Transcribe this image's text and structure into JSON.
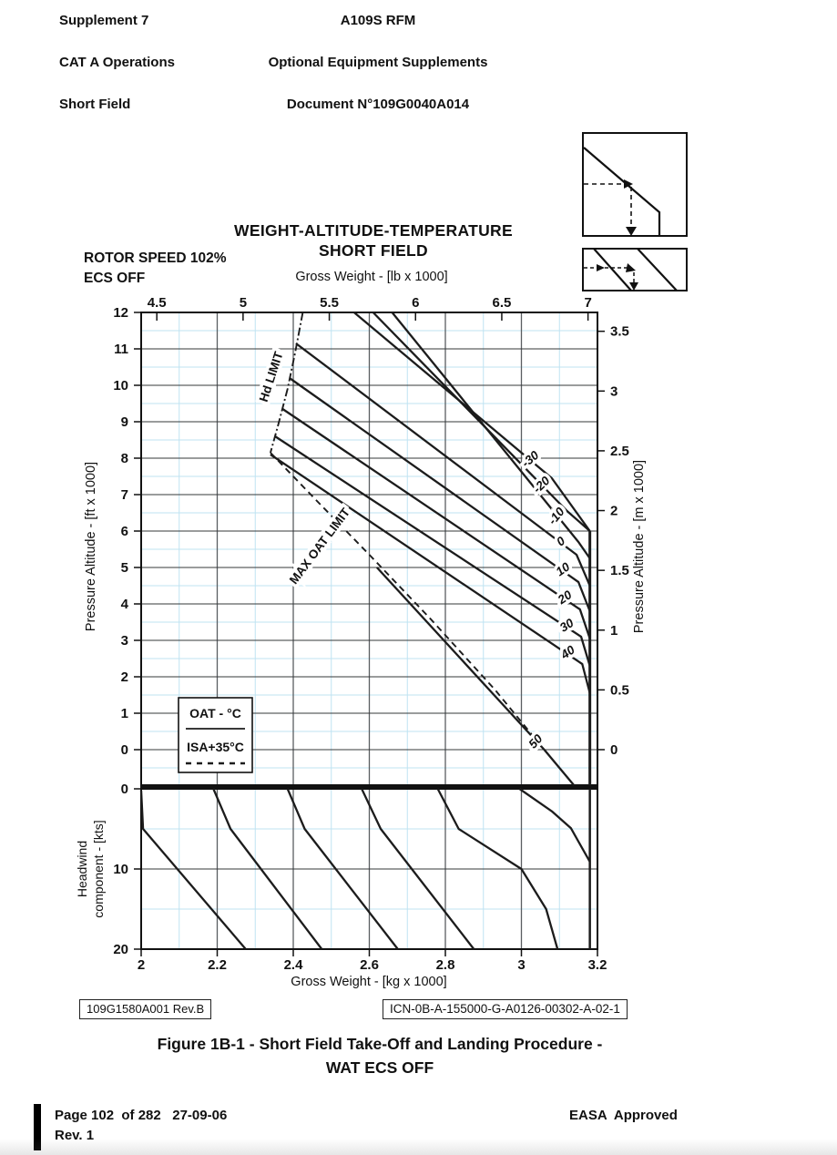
{
  "header": {
    "left_lines": [
      "Supplement 7",
      "CAT A Operations",
      "Short Field"
    ],
    "center_lines": [
      "A109S RFM",
      "Optional Equipment Supplements",
      "Document N°109G0040A014"
    ]
  },
  "ref_boxes": {
    "left": "109G1580A001 Rev.B",
    "right": "ICN-0B-A-155000-G-A0126-00302-A-02-1"
  },
  "caption": {
    "line1": "Figure 1B-1 - Short Field Take-Off and Landing Procedure -",
    "line2": "WAT ECS OFF"
  },
  "footer": {
    "page_line": "Page 102  of 282   27-09-06",
    "rev_line": "Rev. 1",
    "approved": "EASA  Approved"
  },
  "chart_data": {
    "type": "line",
    "title": "WEIGHT-ALTITUDE-TEMPERATURE",
    "subtitle": "SHORT FIELD",
    "condition_lines": [
      "ROTOR SPEED 102%",
      "ECS OFF"
    ],
    "axes": {
      "top": {
        "label": "Gross Weight - [lb x 1000]",
        "ticks": [
          4.5,
          5,
          5.5,
          6,
          6.5,
          7
        ],
        "kg_per_klb": 0.45359237
      },
      "bottom": {
        "label": "Gross Weight - [kg x 1000]",
        "ticks": [
          2,
          2.2,
          2.4,
          2.6,
          2.8,
          3,
          3.2
        ],
        "range": [
          2.0,
          3.2
        ],
        "minor_step": 0.1
      },
      "left_upper": {
        "label": "Pressure Altitude - [ft x 1000]",
        "ticks": [
          0,
          1,
          2,
          3,
          4,
          5,
          6,
          7,
          8,
          9,
          10,
          11,
          12
        ],
        "range": [
          -0.975,
          12
        ],
        "minor_step": 0.5
      },
      "right_upper": {
        "label": "Pressure Altitude - [m x 1000]",
        "ticks": [
          0,
          0.5,
          1,
          1.5,
          2,
          2.5,
          3,
          3.5
        ],
        "ft_per_m": 3.28084
      },
      "left_lower": {
        "label_line1": "Headwind",
        "label_line2": "component - [kts]",
        "ticks": [
          0,
          10,
          20
        ],
        "range": [
          0,
          20
        ],
        "light_lines": [
          5,
          15
        ],
        "dark_lines": [
          10
        ]
      }
    },
    "weight_limit_kg": 3.18,
    "limit_vertical_top_ft": 6.0,
    "hd_limit": {
      "label": "Hd LIMIT",
      "points": [
        [
          2.425,
          12
        ],
        [
          2.405,
          10.9
        ],
        [
          2.385,
          9.9
        ],
        [
          2.36,
          8.9
        ],
        [
          2.34,
          8.15
        ]
      ],
      "label_pos": [
        2.352,
        10.2
      ],
      "label_rot": -72
    },
    "max_oat_limit": {
      "label": "MAX OAT LIMIT",
      "points": [
        [
          2.34,
          8.15
        ],
        [
          2.46,
          6.85
        ],
        [
          2.6,
          5.35
        ],
        [
          2.76,
          3.6
        ],
        [
          2.93,
          1.65
        ],
        [
          3.06,
          0.0
        ],
        [
          3.138,
          -0.975
        ]
      ],
      "label_pos": [
        2.478,
        5.52
      ],
      "label_rot": -53
    },
    "oat_lines": [
      {
        "label": "-30",
        "points": [
          [
            2.56,
            12
          ],
          [
            3.08,
            7.45
          ],
          [
            3.18,
            6.0
          ]
        ],
        "label_pos": [
          3.03,
          7.89
        ],
        "label_rot": -40
      },
      {
        "label": "-20",
        "points": [
          [
            2.61,
            12
          ],
          [
            3.12,
            6.55
          ],
          [
            3.18,
            6.0
          ]
        ],
        "label_pos": [
          3.06,
          7.19
        ],
        "label_rot": -44
      },
      {
        "label": "-10",
        "points": [
          [
            2.66,
            12
          ],
          [
            3.15,
            5.7
          ],
          [
            3.18,
            5.25
          ]
        ],
        "label_pos": [
          3.1,
          6.34
        ],
        "label_rot": -50
      },
      {
        "label": "0",
        "points": [
          [
            2.407,
            11.15
          ],
          [
            3.145,
            5.35
          ],
          [
            3.18,
            4.5
          ]
        ],
        "label_pos": [
          3.11,
          5.63
        ],
        "label_rot": -37
      },
      {
        "label": "10",
        "points": [
          [
            2.39,
            10.2
          ],
          [
            3.15,
            4.6
          ],
          [
            3.18,
            3.8
          ]
        ],
        "label_pos": [
          3.115,
          4.86
        ],
        "label_rot": -35
      },
      {
        "label": "20",
        "points": [
          [
            2.372,
            9.35
          ],
          [
            3.154,
            3.85
          ],
          [
            3.18,
            3.05
          ]
        ],
        "label_pos": [
          3.12,
          4.09
        ],
        "label_rot": -34
      },
      {
        "label": "30",
        "points": [
          [
            2.352,
            8.6
          ],
          [
            3.157,
            3.1
          ],
          [
            3.18,
            2.3
          ]
        ],
        "label_pos": [
          3.125,
          3.32
        ],
        "label_rot": -33
      },
      {
        "label": "40",
        "points": [
          [
            2.34,
            8.1
          ],
          [
            3.16,
            2.35
          ],
          [
            3.18,
            1.55
          ]
        ],
        "label_pos": [
          3.128,
          2.58
        ],
        "label_rot": -34
      },
      {
        "label": "50",
        "points": [
          [
            2.62,
            5.0
          ],
          [
            3.06,
            0.0
          ],
          [
            3.138,
            -0.975
          ]
        ],
        "label_pos": [
          3.045,
          0.15
        ],
        "label_rot": -47
      }
    ],
    "headwind_curves": [
      [
        [
          2.0,
          0.2
        ],
        [
          2.005,
          5
        ],
        [
          2.275,
          20
        ]
      ],
      [
        [
          2.19,
          0
        ],
        [
          2.235,
          5
        ],
        [
          2.475,
          20
        ]
      ],
      [
        [
          2.385,
          0
        ],
        [
          2.43,
          5
        ],
        [
          2.675,
          20
        ]
      ],
      [
        [
          2.58,
          0
        ],
        [
          2.63,
          5
        ],
        [
          2.875,
          20
        ]
      ],
      [
        [
          2.78,
          0
        ],
        [
          2.835,
          5
        ],
        [
          3.0,
          10
        ],
        [
          3.065,
          15
        ],
        [
          3.095,
          20
        ]
      ],
      [
        [
          2.995,
          0
        ],
        [
          3.08,
          2.8
        ],
        [
          3.13,
          4.9
        ],
        [
          3.18,
          9.1
        ]
      ]
    ],
    "legend": {
      "line1": "OAT - °C",
      "line2": "ISA+35°C"
    },
    "colors": {
      "line": "#1c1c1c",
      "grid_major_v": "#5a5e61",
      "grid_major_h": "#35383a",
      "grid_light": "#bfe3f2",
      "border": "#111111"
    }
  }
}
